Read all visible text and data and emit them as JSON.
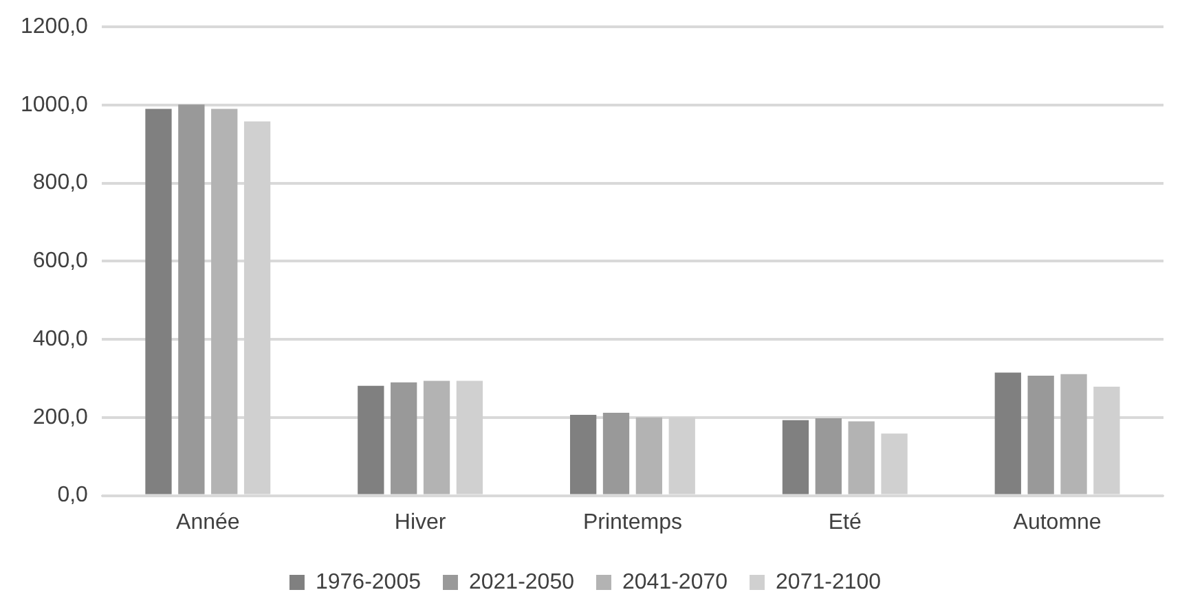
{
  "chart_data": {
    "type": "bar",
    "categories": [
      "Année",
      "Hiver",
      "Printemps",
      "Eté",
      "Automne"
    ],
    "series": [
      {
        "name": "1976-2005",
        "color": "#808080",
        "values": [
          990,
          281,
          207,
          193,
          315
        ]
      },
      {
        "name": "2021-2050",
        "color": "#999999",
        "values": [
          1001,
          290,
          212,
          198,
          307
        ]
      },
      {
        "name": "2041-2070",
        "color": "#b3b3b3",
        "values": [
          990,
          294,
          200,
          190,
          311
        ]
      },
      {
        "name": "2071-2100",
        "color": "#d0d0d0",
        "values": [
          958,
          294,
          200,
          159,
          279
        ]
      }
    ],
    "ylim": [
      0,
      1200
    ],
    "yticks": [
      {
        "value": 0,
        "label": "0,0"
      },
      {
        "value": 200,
        "label": "200,0"
      },
      {
        "value": 400,
        "label": "400,0"
      },
      {
        "value": 600,
        "label": "600,0"
      },
      {
        "value": 800,
        "label": "800,0"
      },
      {
        "value": 1000,
        "label": "1000,0"
      },
      {
        "value": 1200,
        "label": "1200,0"
      }
    ],
    "grid": "y",
    "legend": "bottom"
  }
}
